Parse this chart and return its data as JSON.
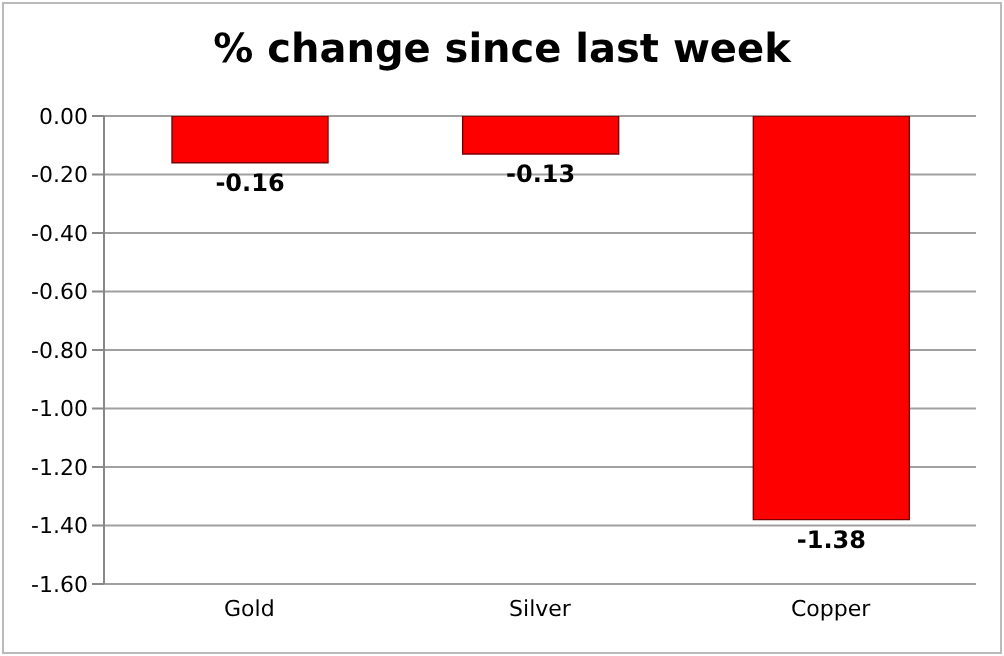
{
  "chart_data": {
    "type": "bar",
    "title": "% change since last week",
    "categories": [
      "Gold",
      "Silver",
      "Copper"
    ],
    "values": [
      -0.16,
      -0.13,
      -1.38
    ],
    "color": "#ff0000",
    "ylim": [
      -1.6,
      0
    ],
    "yticks": [
      {
        "value": 0,
        "label": "0.00"
      },
      {
        "value": -0.2,
        "label": "-0.20"
      },
      {
        "value": -0.4,
        "label": "-0.40"
      },
      {
        "value": -0.6,
        "label": "-0.60"
      },
      {
        "value": -0.8,
        "label": "-0.80"
      },
      {
        "value": -1.0,
        "label": "-1.00"
      },
      {
        "value": -1.2,
        "label": "-1.20"
      },
      {
        "value": -1.4,
        "label": "-1.40"
      },
      {
        "value": -1.6,
        "label": "-1.60"
      }
    ],
    "grid": "y",
    "data_labels": true
  }
}
